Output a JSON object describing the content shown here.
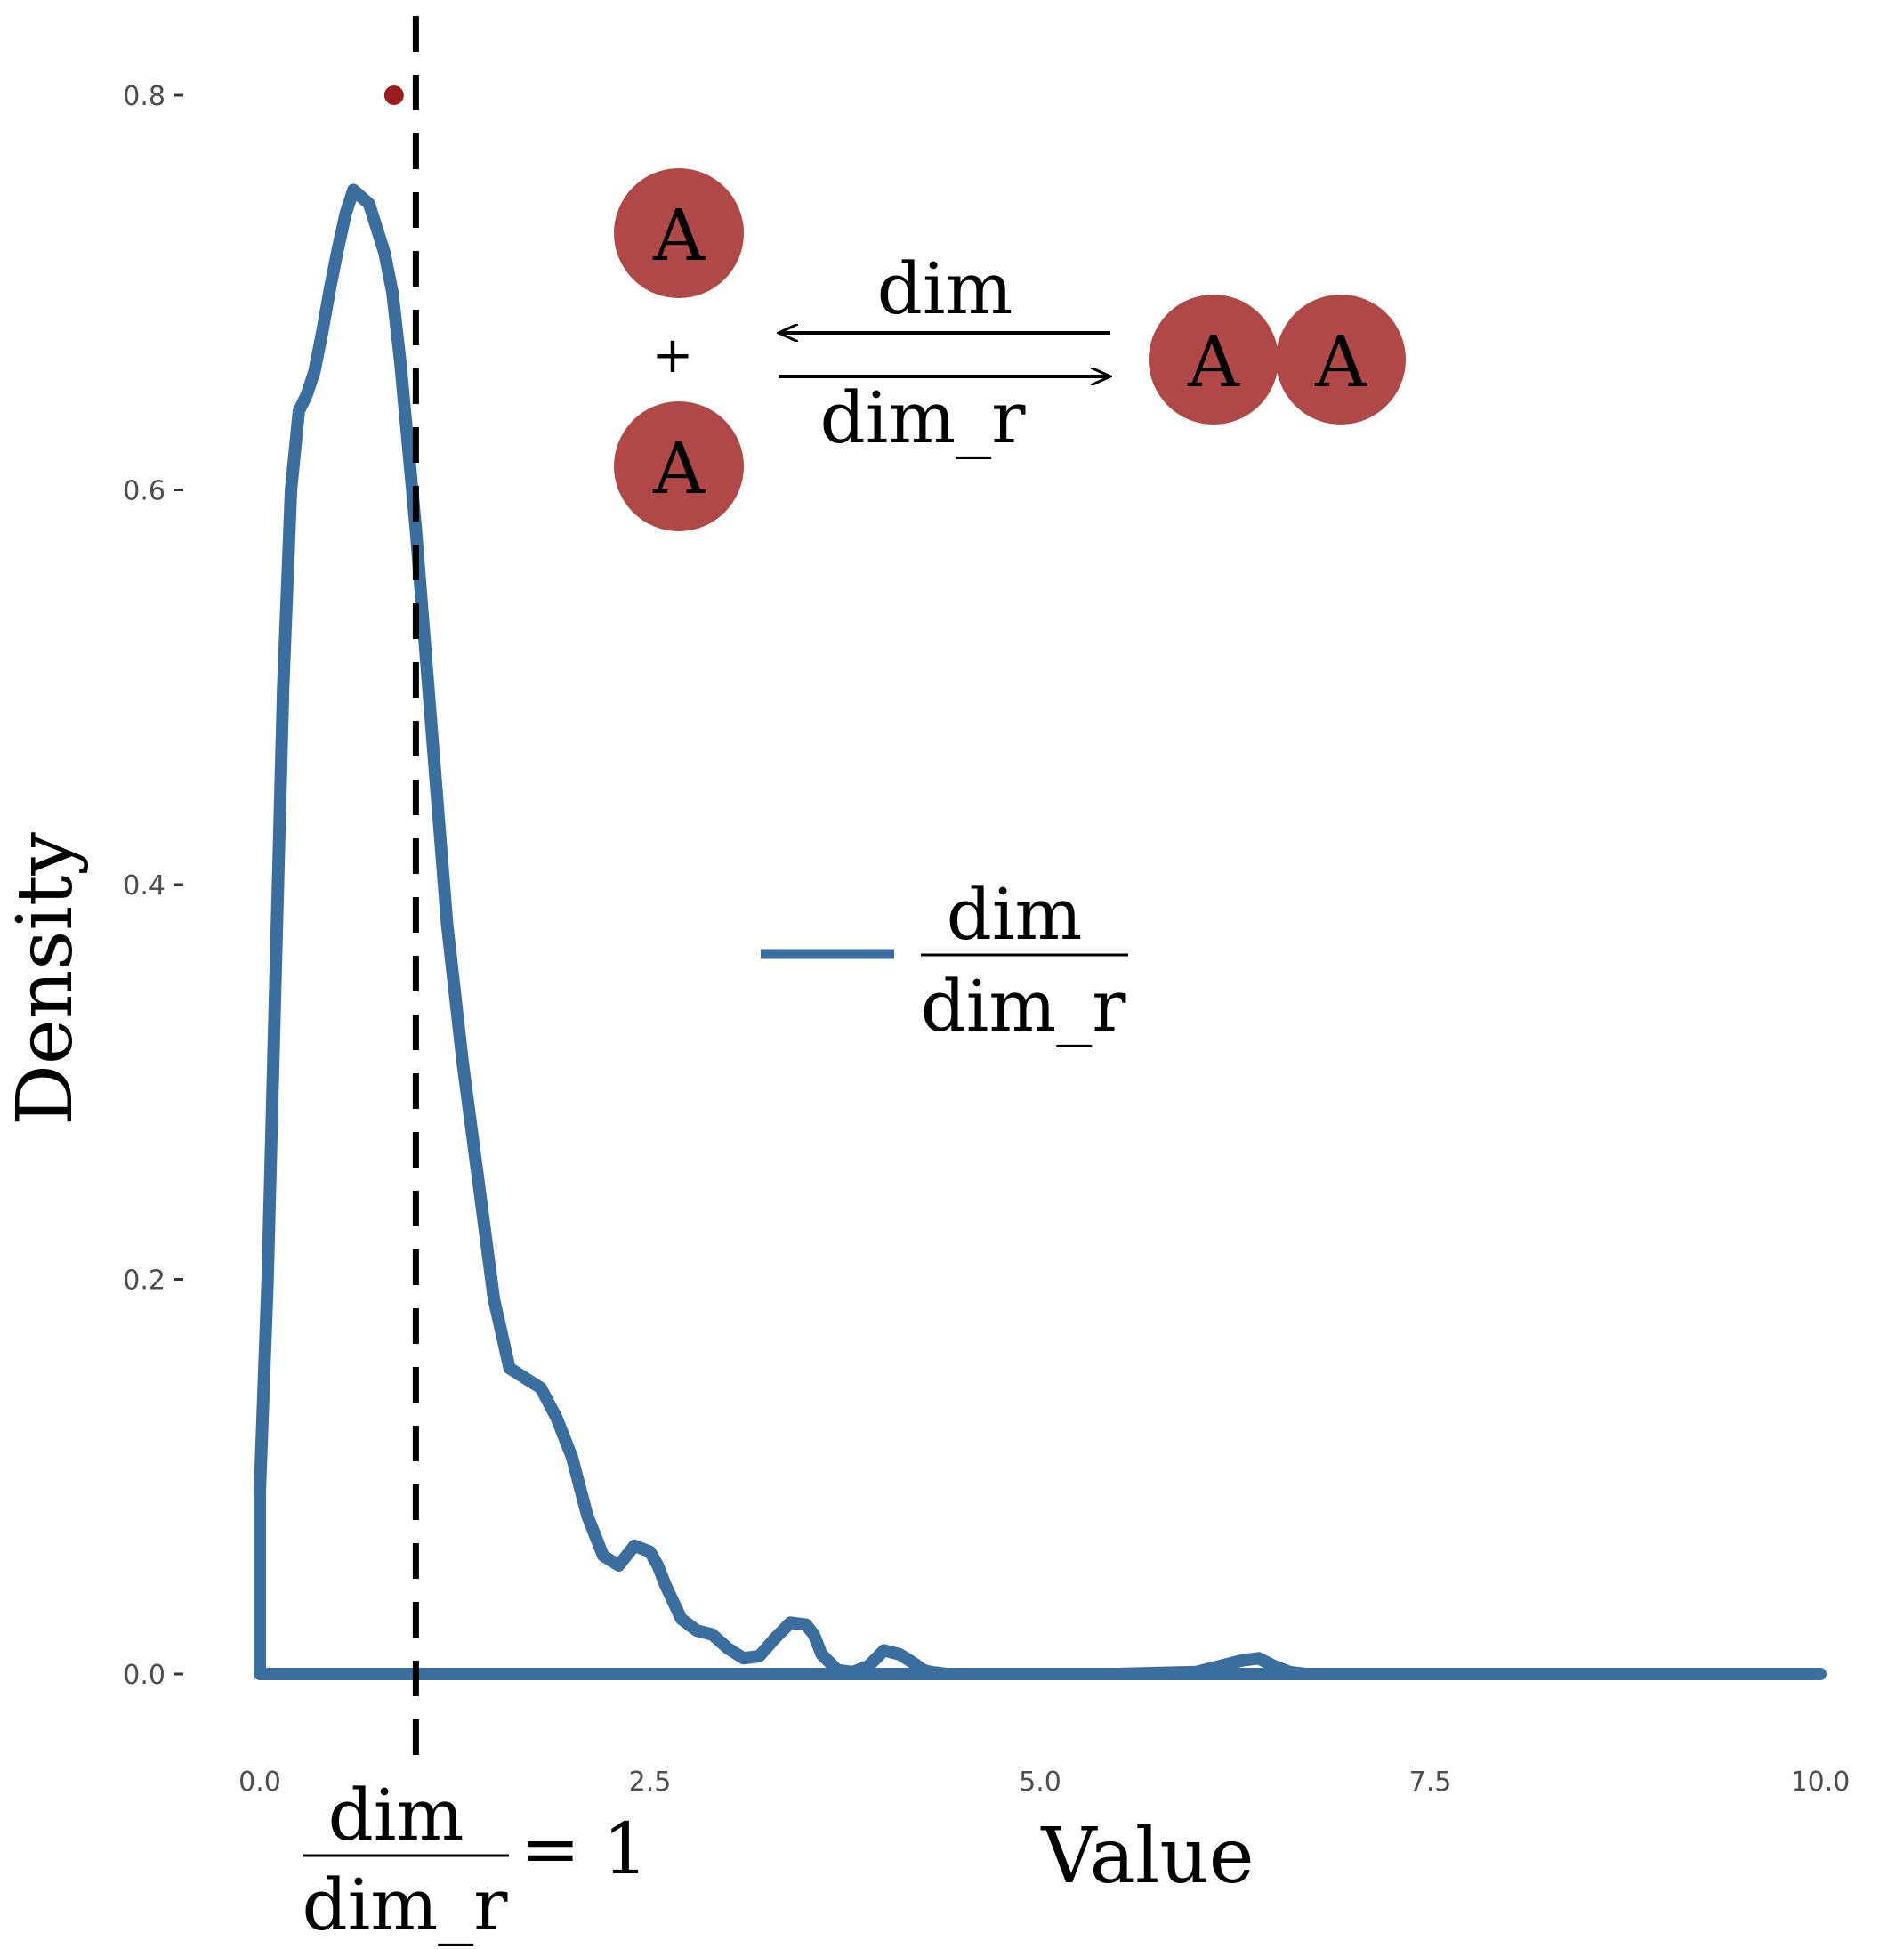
{
  "chart_data": {
    "type": "line",
    "xlabel": "Value",
    "ylabel": "Density",
    "xlim": [
      0,
      10
    ],
    "ylim": [
      0,
      0.8
    ],
    "x_ticks": [
      "0.0",
      "2.5",
      "5.0",
      "7.5",
      "10.0"
    ],
    "y_ticks": [
      "0.0",
      "0.2",
      "0.4",
      "0.6",
      "0.8"
    ],
    "grid": false,
    "legend": {
      "placement": "center",
      "entries": [
        {
          "numerator": "dim",
          "denominator": "dim_r"
        }
      ]
    },
    "series": [
      {
        "color": "#3A6E9F",
        "x": [
          0,
          0,
          0.05,
          0.1,
          0.15,
          0.2,
          0.25,
          0.3,
          0.35,
          0.4,
          0.45,
          0.5,
          0.55,
          0.6,
          0.7,
          0.8,
          0.85,
          0.9,
          1.0,
          1.1,
          1.2,
          1.3,
          1.4,
          1.5,
          1.6,
          1.7,
          1.8,
          1.9,
          2.0,
          2.1,
          2.2,
          2.3,
          2.4,
          2.5,
          2.55,
          2.6,
          2.7,
          2.8,
          2.9,
          3.0,
          3.1,
          3.2,
          3.3,
          3.4,
          3.5,
          3.55,
          3.6,
          3.7,
          3.8,
          3.9,
          4.0,
          4.1,
          4.2,
          4.25,
          4.3,
          4.4,
          4.5,
          4.6,
          5.0,
          5.5,
          6.0,
          6.3,
          6.4,
          6.5,
          6.6,
          6.7,
          6.8,
          7.0,
          7.5,
          8.0,
          8.5,
          9.0,
          9.5,
          10.0
        ],
        "y": [
          0,
          0.092,
          0.2,
          0.35,
          0.5,
          0.6,
          0.64,
          0.648,
          0.66,
          0.68,
          0.702,
          0.722,
          0.74,
          0.752,
          0.745,
          0.72,
          0.7,
          0.665,
          0.58,
          0.48,
          0.38,
          0.31,
          0.25,
          0.19,
          0.155,
          0.15,
          0.145,
          0.13,
          0.11,
          0.08,
          0.06,
          0.055,
          0.065,
          0.062,
          0.055,
          0.045,
          0.028,
          0.022,
          0.02,
          0.013,
          0.008,
          0.009,
          0.018,
          0.026,
          0.025,
          0.02,
          0.01,
          0.002,
          0.001,
          0.004,
          0.012,
          0.01,
          0.005,
          0.002,
          0.001,
          0,
          0,
          0,
          0,
          0,
          0.001,
          0.007,
          0.008,
          0.004,
          0.001,
          0,
          0,
          0,
          0,
          0,
          0,
          0,
          0,
          0
        ]
      }
    ],
    "reference_line": {
      "x": 1,
      "style": "dashed",
      "color": "#000000"
    },
    "marker_point": {
      "x": 0.86,
      "y": 0.8,
      "color": "#9B1C1C"
    },
    "annotations": {
      "ratio": {
        "numerator": "dim",
        "denominator": "dim_r",
        "equals": "= 1"
      }
    }
  },
  "scheme": {
    "monomer_label": "A",
    "plus": "+",
    "forward_label": "dim",
    "reverse_label": "dim_r",
    "sphere_color": "#B04848"
  }
}
